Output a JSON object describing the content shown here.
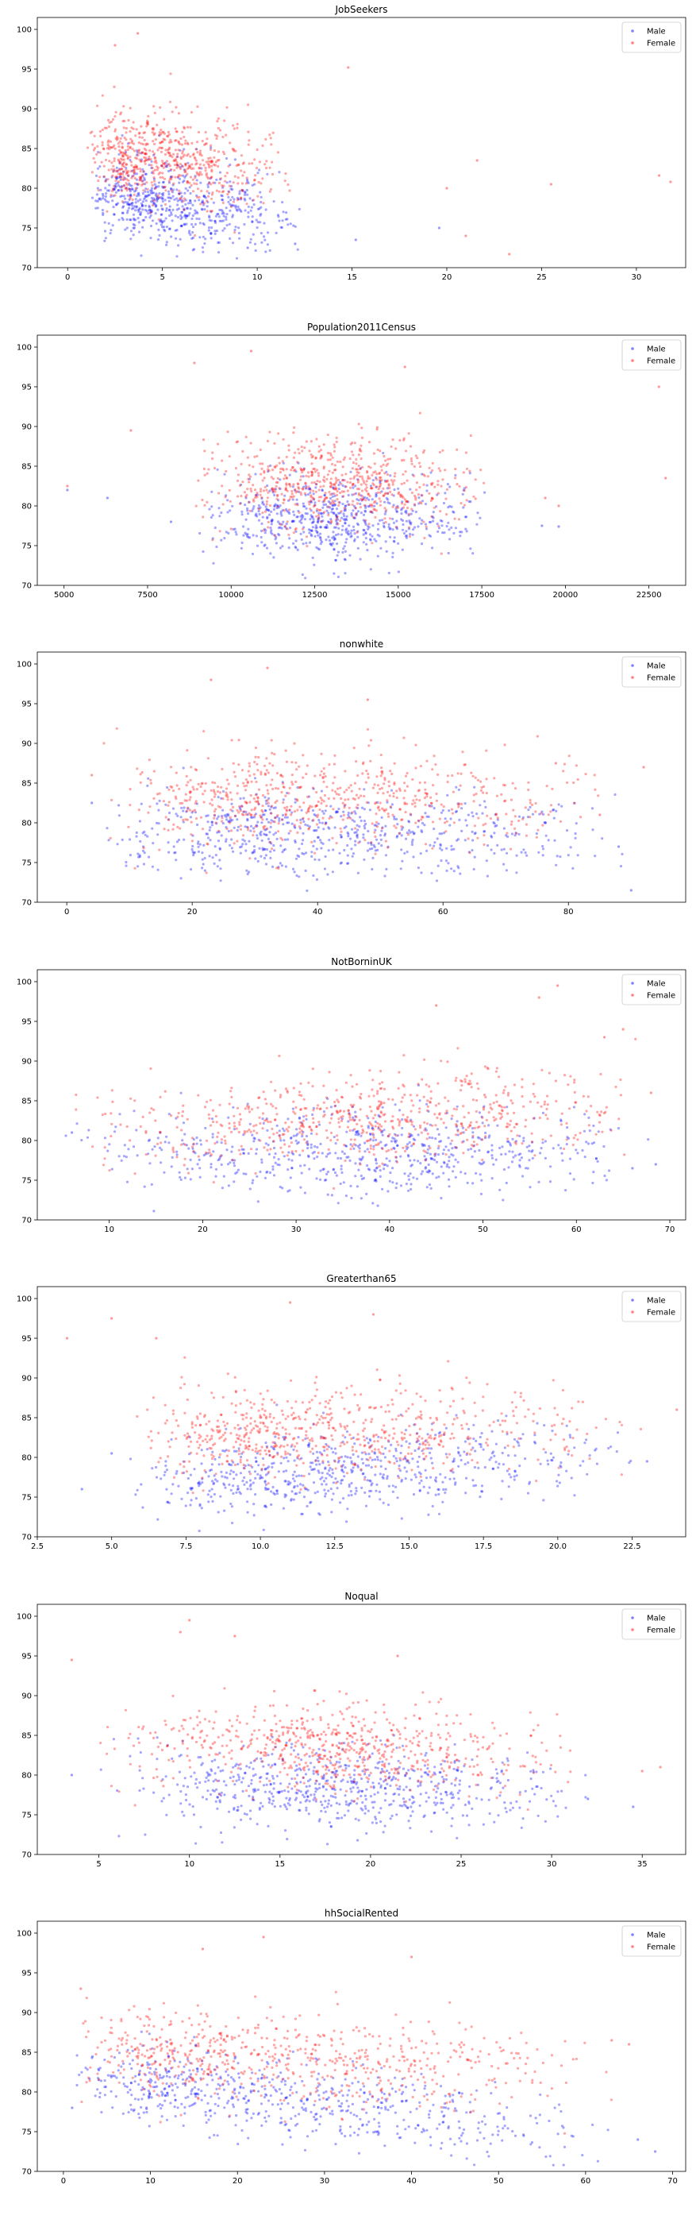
{
  "chart_data": [
    {
      "type": "scatter",
      "title": "JobSeekers",
      "xlim": [
        -1.6,
        32.6
      ],
      "ylim": [
        70,
        101.5
      ],
      "xticks": [
        0,
        5,
        10,
        15,
        20,
        25,
        30
      ],
      "yticks": [
        70,
        75,
        80,
        85,
        90,
        95,
        100
      ],
      "legend": {
        "position": "top-right",
        "entries": [
          "Male",
          "Female"
        ]
      },
      "colors": {
        "Male": "#0000ff",
        "Female": "#ff0000"
      },
      "series": [
        {
          "name": "Male",
          "cluster": {
            "x_min": 1,
            "x_max": 12.5,
            "x_mode": 3.5,
            "y_center": 78.5,
            "y_center_slope": -0.25,
            "y_spread": 2.6
          },
          "outliers": [
            [
              19.6,
              75
            ],
            [
              15.2,
              73.5
            ],
            [
              12.0,
              73
            ],
            [
              9.5,
              72.5
            ]
          ]
        },
        {
          "name": "Female",
          "cluster": {
            "x_min": 1,
            "x_max": 12,
            "x_mode": 3.0,
            "y_center": 84,
            "y_center_slope": -0.25,
            "y_spread": 3.0
          },
          "outliers": [
            [
              3.7,
              99.5
            ],
            [
              2.5,
              98
            ],
            [
              14.8,
              95.2
            ],
            [
              20,
              80
            ],
            [
              21.6,
              83.5
            ],
            [
              23.3,
              71.7
            ],
            [
              25.5,
              80.5
            ],
            [
              31.8,
              80.8
            ],
            [
              31.2,
              81.6
            ],
            [
              21,
              74
            ]
          ]
        }
      ]
    },
    {
      "type": "scatter",
      "title": "Population2011Census",
      "xlim": [
        4200,
        23600
      ],
      "ylim": [
        70,
        101.5
      ],
      "xticks": [
        5000,
        7500,
        10000,
        12500,
        15000,
        17500,
        20000,
        22500
      ],
      "yticks": [
        70,
        75,
        80,
        85,
        90,
        95,
        100
      ],
      "legend": {
        "position": "top-right",
        "entries": [
          "Male",
          "Female"
        ]
      },
      "colors": {
        "Male": "#0000ff",
        "Female": "#ff0000"
      },
      "series": [
        {
          "name": "Male",
          "cluster": {
            "x_min": 8800,
            "x_max": 17800,
            "x_mode": 12800,
            "y_center": 78.5,
            "y_center_slope": 0,
            "y_spread": 2.6
          },
          "outliers": [
            [
              5100,
              82
            ],
            [
              6300,
              81
            ],
            [
              19300,
              77.5
            ],
            [
              19800,
              77.4
            ],
            [
              8200,
              78
            ]
          ]
        },
        {
          "name": "Female",
          "cluster": {
            "x_min": 8800,
            "x_max": 17800,
            "x_mode": 12800,
            "y_center": 83,
            "y_center_slope": 0,
            "y_spread": 2.8
          },
          "outliers": [
            [
              10600,
              99.5
            ],
            [
              8900,
              98
            ],
            [
              15200,
              97.5
            ],
            [
              19400,
              81
            ],
            [
              19800,
              80
            ],
            [
              23000,
              83.5
            ],
            [
              22800,
              95
            ],
            [
              5100,
              82.5
            ],
            [
              7000,
              89.5
            ]
          ]
        }
      ]
    },
    {
      "type": "scatter",
      "title": "nonwhite",
      "xlim": [
        -4.7,
        98.7
      ],
      "ylim": [
        70,
        101.5
      ],
      "xticks": [
        0,
        20,
        40,
        60,
        80
      ],
      "yticks": [
        70,
        75,
        80,
        85,
        90,
        95,
        100
      ],
      "legend": {
        "position": "top-right",
        "entries": [
          "Male",
          "Female"
        ]
      },
      "colors": {
        "Male": "#0000ff",
        "Female": "#ff0000"
      },
      "series": [
        {
          "name": "Male",
          "cluster": {
            "x_min": 5,
            "x_max": 90,
            "x_mode": 30,
            "y_center": 78.5,
            "y_center_slope": 0,
            "y_spread": 2.6
          },
          "outliers": [
            [
              4,
              82.5
            ],
            [
              90,
              71.5
            ],
            [
              88,
              77
            ]
          ]
        },
        {
          "name": "Female",
          "cluster": {
            "x_min": 5,
            "x_max": 90,
            "x_mode": 30,
            "y_center": 83,
            "y_center_slope": 0,
            "y_spread": 3.0
          },
          "outliers": [
            [
              32,
              99.5
            ],
            [
              23,
              98
            ],
            [
              48,
              95.5
            ],
            [
              78,
              87.5
            ],
            [
              92,
              87
            ],
            [
              85,
              81
            ],
            [
              4,
              86
            ]
          ]
        }
      ]
    },
    {
      "type": "scatter",
      "title": "NotBorninUK",
      "xlim": [
        2.3,
        71.7
      ],
      "ylim": [
        70,
        101.5
      ],
      "xticks": [
        10,
        20,
        30,
        40,
        50,
        60,
        70
      ],
      "yticks": [
        70,
        75,
        80,
        85,
        90,
        95,
        100
      ],
      "legend": {
        "position": "top-right",
        "entries": [
          "Male",
          "Female"
        ]
      },
      "colors": {
        "Male": "#0000ff",
        "Female": "#ff0000"
      },
      "series": [
        {
          "name": "Male",
          "cluster": {
            "x_min": 5,
            "x_max": 68,
            "x_mode": 40,
            "y_center": 78.5,
            "y_center_slope": 0,
            "y_spread": 2.6
          },
          "outliers": [
            [
              6,
              81
            ],
            [
              66,
              76.5
            ],
            [
              68.5,
              77
            ]
          ]
        },
        {
          "name": "Female",
          "cluster": {
            "x_min": 5,
            "x_max": 68,
            "x_mode": 40,
            "y_center": 83,
            "y_center_slope": 0.05,
            "y_spread": 2.8
          },
          "outliers": [
            [
              58,
              99.5
            ],
            [
              56,
              98
            ],
            [
              45,
              97
            ],
            [
              63,
              93
            ],
            [
              65,
              94
            ],
            [
              68,
              86
            ]
          ]
        }
      ]
    },
    {
      "type": "scatter",
      "title": "Greaterthan65",
      "xlim": [
        2.5,
        24.3
      ],
      "ylim": [
        70,
        101.5
      ],
      "xticks": [
        2.5,
        5.0,
        7.5,
        10.0,
        12.5,
        15.0,
        17.5,
        20.0,
        22.5
      ],
      "xtick_labels": [
        "2.5",
        "5.0",
        "7.5",
        "10.0",
        "12.5",
        "15.0",
        "17.5",
        "20.0",
        "22.5"
      ],
      "yticks": [
        70,
        75,
        80,
        85,
        90,
        95,
        100
      ],
      "legend": {
        "position": "top-right",
        "entries": [
          "Male",
          "Female"
        ]
      },
      "colors": {
        "Male": "#0000ff",
        "Female": "#ff0000"
      },
      "series": [
        {
          "name": "Male",
          "cluster": {
            "x_min": 5.5,
            "x_max": 23,
            "x_mode": 10,
            "y_center": 77.5,
            "y_center_slope": 0.25,
            "y_spread": 2.6
          },
          "outliers": [
            [
              4,
              76
            ],
            [
              5,
              80.5
            ],
            [
              23,
              79.5
            ]
          ]
        },
        {
          "name": "Female",
          "cluster": {
            "x_min": 5.5,
            "x_max": 23,
            "x_mode": 10,
            "y_center": 83,
            "y_center_slope": 0.05,
            "y_spread": 2.8
          },
          "outliers": [
            [
              11,
              99.5
            ],
            [
              13.8,
              98
            ],
            [
              5,
              97.5
            ],
            [
              3.5,
              95
            ],
            [
              6.5,
              95
            ],
            [
              24,
              86
            ]
          ]
        }
      ]
    },
    {
      "type": "scatter",
      "title": "Noqual",
      "xlim": [
        1.6,
        37.4
      ],
      "ylim": [
        70,
        101.5
      ],
      "xticks": [
        5,
        10,
        15,
        20,
        25,
        30,
        35
      ],
      "yticks": [
        70,
        75,
        80,
        85,
        90,
        95,
        100
      ],
      "legend": {
        "position": "top-right",
        "entries": [
          "Male",
          "Female"
        ]
      },
      "colors": {
        "Male": "#0000ff",
        "Female": "#ff0000"
      },
      "series": [
        {
          "name": "Male",
          "cluster": {
            "x_min": 5,
            "x_max": 32,
            "x_mode": 18,
            "y_center": 78.5,
            "y_center_slope": -0.05,
            "y_spread": 2.6
          },
          "outliers": [
            [
              3.5,
              80
            ],
            [
              34.5,
              76
            ],
            [
              32,
              77
            ]
          ]
        },
        {
          "name": "Female",
          "cluster": {
            "x_min": 5,
            "x_max": 32,
            "x_mode": 18,
            "y_center": 83.5,
            "y_center_slope": -0.05,
            "y_spread": 2.8
          },
          "outliers": [
            [
              10,
              99.5
            ],
            [
              9.5,
              98
            ],
            [
              12.5,
              97.5
            ],
            [
              3.5,
              94.5
            ],
            [
              21.5,
              95
            ],
            [
              35,
              80.5
            ],
            [
              36,
              81
            ]
          ]
        }
      ]
    },
    {
      "type": "scatter",
      "title": "hhSocialRented",
      "xlim": [
        -3,
        71.5
      ],
      "ylim": [
        70,
        101.5
      ],
      "xticks": [
        0,
        10,
        20,
        30,
        40,
        50,
        60,
        70
      ],
      "yticks": [
        70,
        75,
        80,
        85,
        90,
        95,
        100
      ],
      "legend": {
        "position": "top-right",
        "entries": [
          "Male",
          "Female"
        ]
      },
      "colors": {
        "Male": "#0000ff",
        "Female": "#ff0000"
      },
      "series": [
        {
          "name": "Male",
          "cluster": {
            "x_min": 1,
            "x_max": 65,
            "x_mode": 10,
            "y_center": 81,
            "y_center_slope": -0.12,
            "y_spread": 2.5
          },
          "outliers": [
            [
              1,
              78
            ],
            [
              66,
              74
            ],
            [
              68,
              72.5
            ]
          ]
        },
        {
          "name": "Female",
          "cluster": {
            "x_min": 1,
            "x_max": 65,
            "x_mode": 10,
            "y_center": 85,
            "y_center_slope": -0.06,
            "y_spread": 2.8
          },
          "outliers": [
            [
              23,
              99.5
            ],
            [
              16,
              98
            ],
            [
              40,
              97
            ],
            [
              2,
              93
            ],
            [
              63,
              86.5
            ],
            [
              65,
              86
            ]
          ]
        }
      ]
    }
  ]
}
